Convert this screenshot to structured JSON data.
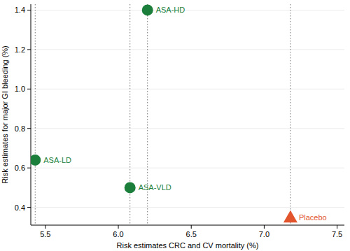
{
  "chart_data": {
    "type": "scatter",
    "x_label": "Risk estimates CRC and CV mortality (%)",
    "y_label": "Risk estimates for major GI bleeding (%)",
    "xlim": [
      5.4,
      7.55
    ],
    "ylim": [
      0.31,
      1.43
    ],
    "xticks": [
      5.5,
      {
        "value": 6,
        "label": "6.0"
      },
      6.5,
      {
        "value": 7,
        "label": "7.0"
      },
      7.5
    ],
    "yticks": [
      0.4,
      0.6,
      0.8,
      {
        "value": 1,
        "label": "1.0"
      },
      1.2,
      1.4
    ],
    "grid": true,
    "series": [
      {
        "name": "ASA-HD",
        "color": "#1b7f3b",
        "marker": "circle",
        "line_style": "dotted",
        "x": [
          6.2
        ],
        "values": [
          1.4
        ]
      },
      {
        "name": "ASA-LD",
        "color": "#1b7f3b",
        "marker": "circle",
        "line_style": "dotted",
        "x": [
          5.43
        ],
        "values": [
          0.64
        ]
      },
      {
        "name": "ASA-VLD",
        "color": "#1b7f3b",
        "marker": "circle",
        "line_style": "dotted",
        "x": [
          6.08
        ],
        "values": [
          0.5
        ]
      },
      {
        "name": "Placebo",
        "color": "#e2552c",
        "marker": "triangle",
        "line_style": "dotted",
        "x": [
          7.18
        ],
        "values": [
          0.35
        ]
      }
    ]
  }
}
